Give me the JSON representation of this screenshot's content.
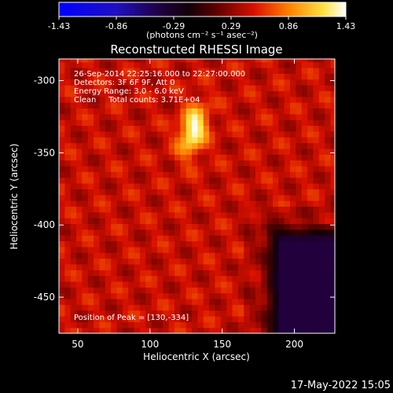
{
  "chart_data": {
    "type": "heatmap",
    "title": "Reconstructed RHESSI Image",
    "xlabel": "Heliocentric X (arcsec)",
    "ylabel": "Heliocentric Y (arcsec)",
    "xlim": [
      37,
      228
    ],
    "ylim": [
      -475,
      -285
    ],
    "x_ticks": [
      50,
      100,
      150,
      200
    ],
    "y_ticks": [
      -300,
      -350,
      -400,
      -450
    ],
    "grid": false,
    "colorbar": {
      "position": "top",
      "label": "(photons cm⁻² s⁻¹ asec⁻²)",
      "range": [
        -1.43,
        1.43
      ],
      "ticks": [
        "-1.43",
        "-0.86",
        "-0.29",
        "0.29",
        "0.86",
        "1.43"
      ],
      "colormap": "RHESSI blue-black-red-yellow-white"
    },
    "annotations": [
      "26-Sep-2014 22:25:16.000 to 22:27:00.000",
      "Detectors: 3F 6F 9F, Att 0",
      "Energy Range: 3.0 - 6.0 keV",
      "Clean     Total counts: 3.71E+04",
      "Position of Peak = [130,-334]"
    ],
    "peak": {
      "x": 130,
      "y": -334,
      "value": 1.43
    },
    "background_level": 0.45,
    "negative_region": {
      "x_from": 175,
      "y_from": -395,
      "value": -0.35
    }
  },
  "footer": {
    "timestamp": "17-May-2022 15:05"
  }
}
